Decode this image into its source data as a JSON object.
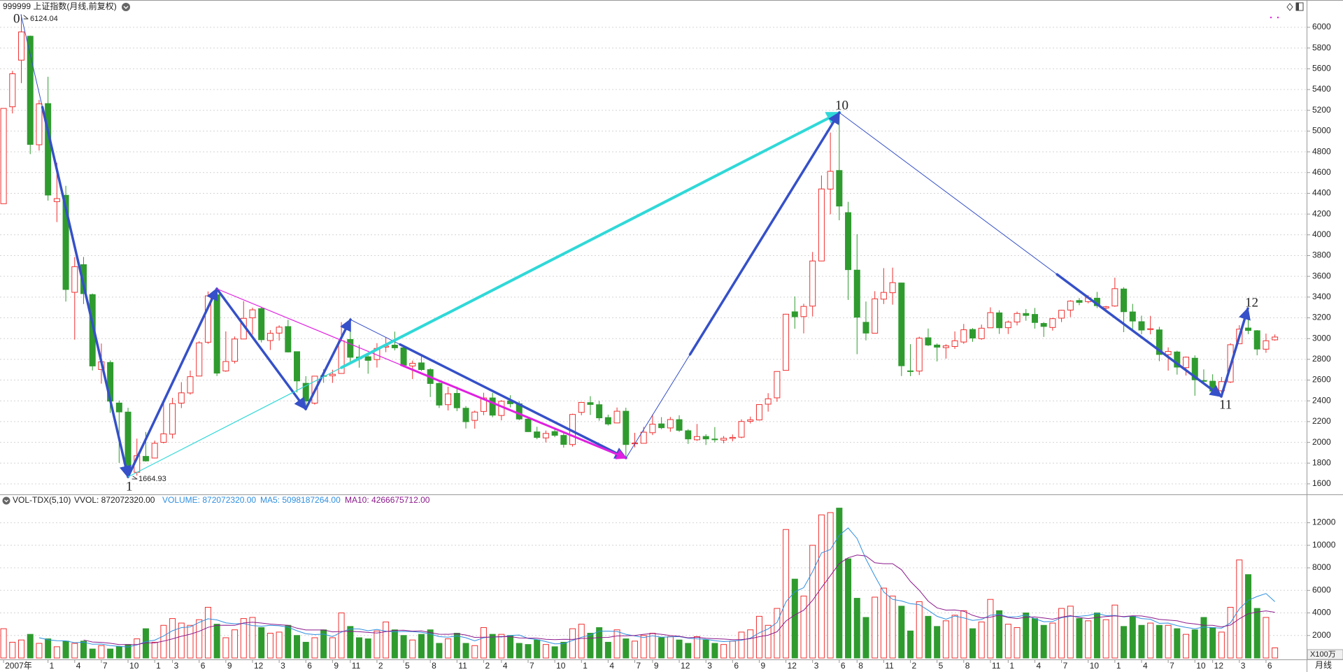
{
  "chart_data": {
    "type": "candlestick",
    "title": "999999 上证指数(月线,前复权)",
    "period": "月线",
    "up_color": "#f03030",
    "down_color": "#2f9b2f",
    "grid": true,
    "ylim": [
      1512,
      6263
    ],
    "yticks": [
      1600,
      1800,
      2000,
      2200,
      2400,
      2600,
      2800,
      3000,
      3200,
      3400,
      3600,
      3800,
      4000,
      4200,
      4400,
      4600,
      4800,
      5000,
      5200,
      5400,
      5600,
      5800,
      6000
    ],
    "wave_labels": [
      "0",
      "1",
      "10",
      "11",
      "12"
    ],
    "extreme_labels": [
      "6124.04",
      "1664.93"
    ],
    "categories": [
      "2007年",
      null,
      null,
      null,
      null,
      "1",
      null,
      null,
      "4",
      null,
      null,
      "7",
      null,
      null,
      "10",
      null,
      null,
      "1",
      null,
      "3",
      null,
      null,
      "6",
      null,
      null,
      "9",
      null,
      null,
      "12",
      null,
      null,
      "3",
      null,
      null,
      "6",
      null,
      null,
      "9",
      null,
      "11",
      null,
      null,
      "2",
      null,
      null,
      "5",
      null,
      null,
      "8",
      null,
      null,
      "11",
      null,
      null,
      "2",
      null,
      "4",
      null,
      null,
      "7",
      null,
      null,
      "10",
      null,
      null,
      "1",
      null,
      null,
      "4",
      null,
      null,
      "7",
      null,
      "9",
      null,
      null,
      "12",
      null,
      null,
      "3",
      null,
      null,
      "6",
      null,
      null,
      "9",
      null,
      null,
      "12",
      null,
      null,
      "3",
      null,
      null,
      "6",
      null,
      "8",
      null,
      null,
      "11",
      null,
      null,
      "2",
      null,
      null,
      "5",
      null,
      null,
      "8",
      null,
      null,
      "11",
      null,
      "1",
      null,
      null,
      "4",
      null,
      null,
      "7",
      null,
      null,
      "10",
      null,
      null,
      "1",
      null,
      null,
      "4",
      null,
      null,
      "7",
      null,
      null,
      "10",
      null,
      "12",
      null,
      null,
      "3",
      null,
      null,
      "6",
      null
    ],
    "candles": [
      [
        4300,
        5219,
        4300,
        5218
      ],
      [
        5234,
        5580,
        5170,
        5552
      ],
      [
        5683,
        6124,
        5462,
        5955
      ],
      [
        5914,
        5920,
        4778,
        4871
      ],
      [
        4868,
        5300,
        4812,
        5262
      ],
      [
        5265,
        5523,
        4330,
        4383
      ],
      [
        4320,
        4695,
        4123,
        4349
      ],
      [
        4381,
        4472,
        3357,
        3473
      ],
      [
        3446,
        3786,
        2990,
        3693
      ],
      [
        3713,
        3787,
        3333,
        3433
      ],
      [
        3424,
        3434,
        2693,
        2736
      ],
      [
        2702,
        2952,
        2566,
        2776
      ],
      [
        2770,
        2790,
        2284,
        2397
      ],
      [
        2379,
        2403,
        1802,
        2293
      ],
      [
        2292,
        2333,
        1665,
        1729
      ],
      [
        1712,
        2036,
        1679,
        1871
      ],
      [
        1865,
        2100,
        1814,
        1821
      ],
      [
        1849,
        2017,
        1845,
        1991
      ],
      [
        2000,
        2402,
        1990,
        2082
      ],
      [
        2079,
        2429,
        2037,
        2373
      ],
      [
        2378,
        2580,
        2330,
        2477
      ],
      [
        2476,
        2692,
        2460,
        2633
      ],
      [
        2639,
        2975,
        2639,
        2959
      ],
      [
        2965,
        3454,
        2949,
        3412
      ],
      [
        3422,
        3478,
        2639,
        2667
      ],
      [
        2688,
        3069,
        2680,
        2779
      ],
      [
        2781,
        3020,
        2760,
        2996
      ],
      [
        2996,
        3361,
        2996,
        3195
      ],
      [
        3200,
        3298,
        3039,
        3277
      ],
      [
        3289,
        3306,
        2963,
        2989
      ],
      [
        2981,
        3082,
        2890,
        3051
      ],
      [
        3053,
        3128,
        2981,
        3110
      ],
      [
        3116,
        3181,
        2866,
        2871
      ],
      [
        2874,
        2876,
        2481,
        2592
      ],
      [
        2569,
        2638,
        2319,
        2398
      ],
      [
        2378,
        2638,
        2363,
        2638
      ],
      [
        2643,
        2704,
        2574,
        2638
      ],
      [
        2642,
        2700,
        2573,
        2656
      ],
      [
        2664,
        3159,
        2664,
        2979
      ],
      [
        2992,
        3186,
        2757,
        2820
      ],
      [
        2822,
        2940,
        2720,
        2808
      ],
      [
        2825,
        2840,
        2661,
        2790
      ],
      [
        2798,
        2956,
        2721,
        2905
      ],
      [
        2918,
        3012,
        2869,
        2928
      ],
      [
        2937,
        3067,
        2886,
        2911
      ],
      [
        2911,
        2920,
        2724,
        2743
      ],
      [
        2736,
        2788,
        2610,
        2762
      ],
      [
        2766,
        2827,
        2687,
        2701
      ],
      [
        2701,
        2714,
        2437,
        2567
      ],
      [
        2568,
        2578,
        2331,
        2359
      ],
      [
        2363,
        2536,
        2307,
        2468
      ],
      [
        2472,
        2537,
        2301,
        2333
      ],
      [
        2329,
        2350,
        2134,
        2199
      ],
      [
        2212,
        2306,
        2132,
        2292
      ],
      [
        2298,
        2478,
        2262,
        2428
      ],
      [
        2428,
        2477,
        2242,
        2262
      ],
      [
        2259,
        2407,
        2212,
        2396
      ],
      [
        2399,
        2454,
        2337,
        2372
      ],
      [
        2372,
        2396,
        2214,
        2225
      ],
      [
        2224,
        2234,
        2100,
        2103
      ],
      [
        2101,
        2150,
        2030,
        2047
      ],
      [
        2043,
        2114,
        1999,
        2086
      ],
      [
        2104,
        2131,
        2050,
        2068
      ],
      [
        2067,
        2090,
        1949,
        1980
      ],
      [
        1979,
        2276,
        1959,
        2269
      ],
      [
        2289,
        2389,
        2261,
        2385
      ],
      [
        2383,
        2445,
        2264,
        2365
      ],
      [
        2363,
        2400,
        2209,
        2236
      ],
      [
        2239,
        2267,
        2162,
        2177
      ],
      [
        2187,
        2336,
        2184,
        2300
      ],
      [
        2300,
        2334,
        1849,
        1979
      ],
      [
        1986,
        2092,
        1951,
        1993
      ],
      [
        1991,
        2149,
        1990,
        2098
      ],
      [
        2093,
        2270,
        2070,
        2175
      ],
      [
        2178,
        2243,
        2127,
        2141
      ],
      [
        2139,
        2245,
        2102,
        2220
      ],
      [
        2219,
        2261,
        2101,
        2116
      ],
      [
        2112,
        2127,
        1985,
        2033
      ],
      [
        2025,
        2177,
        2014,
        2056
      ],
      [
        2057,
        2078,
        1975,
        2033
      ],
      [
        2032,
        2147,
        1999,
        2026
      ],
      [
        2022,
        2061,
        1991,
        2039
      ],
      [
        2038,
        2076,
        2010,
        2048
      ],
      [
        2050,
        2222,
        2040,
        2201
      ],
      [
        2203,
        2248,
        2182,
        2217
      ],
      [
        2216,
        2366,
        2211,
        2364
      ],
      [
        2368,
        2474,
        2296,
        2420
      ],
      [
        2429,
        2685,
        2391,
        2683
      ],
      [
        2694,
        3239,
        2693,
        3235
      ],
      [
        3258,
        3406,
        3095,
        3210
      ],
      [
        3212,
        3336,
        3050,
        3310
      ],
      [
        3313,
        3835,
        3213,
        3748
      ],
      [
        3748,
        4572,
        3745,
        4442
      ],
      [
        4441,
        4986,
        4198,
        4612
      ],
      [
        4620,
        5178,
        4140,
        4277
      ],
      [
        4214,
        4318,
        3373,
        3664
      ],
      [
        3660,
        4006,
        2850,
        3206
      ],
      [
        3157,
        3357,
        2983,
        3053
      ],
      [
        3052,
        3457,
        3052,
        3383
      ],
      [
        3380,
        3679,
        3333,
        3445
      ],
      [
        3442,
        3684,
        3327,
        3539
      ],
      [
        3536,
        3539,
        2639,
        2738
      ],
      [
        2689,
        2946,
        2638,
        2688
      ],
      [
        2687,
        3018,
        2649,
        3004
      ],
      [
        3008,
        3097,
        2928,
        2938
      ],
      [
        2938,
        2953,
        2780,
        2917
      ],
      [
        2913,
        2946,
        2807,
        2930
      ],
      [
        2924,
        3069,
        2900,
        2979
      ],
      [
        2967,
        3141,
        2950,
        3085
      ],
      [
        3088,
        3101,
        2969,
        3005
      ],
      [
        2999,
        3135,
        2989,
        3100
      ],
      [
        3104,
        3301,
        3102,
        3250
      ],
      [
        3248,
        3273,
        3045,
        3104
      ],
      [
        3105,
        3174,
        3044,
        3159
      ],
      [
        3160,
        3260,
        3127,
        3242
      ],
      [
        3242,
        3285,
        3172,
        3223
      ],
      [
        3233,
        3295,
        3096,
        3155
      ],
      [
        3146,
        3159,
        3016,
        3117
      ],
      [
        3107,
        3200,
        3077,
        3192
      ],
      [
        3197,
        3277,
        3159,
        3273
      ],
      [
        3275,
        3370,
        3207,
        3361
      ],
      [
        3367,
        3391,
        3322,
        3349
      ],
      [
        3356,
        3418,
        3340,
        3393
      ],
      [
        3389,
        3450,
        3294,
        3317
      ],
      [
        3295,
        3315,
        3254,
        3307
      ],
      [
        3314,
        3587,
        3307,
        3481
      ],
      [
        3478,
        3495,
        3062,
        3259
      ],
      [
        3257,
        3335,
        3091,
        3169
      ],
      [
        3163,
        3221,
        3041,
        3082
      ],
      [
        3087,
        3219,
        3041,
        3095
      ],
      [
        3084,
        3113,
        2782,
        2847
      ],
      [
        2845,
        2915,
        2691,
        2876
      ],
      [
        2871,
        2883,
        2653,
        2725
      ],
      [
        2720,
        2827,
        2644,
        2821
      ],
      [
        2811,
        2838,
        2449,
        2603
      ],
      [
        2596,
        2703,
        2565,
        2588
      ],
      [
        2589,
        2656,
        2463,
        2494
      ],
      [
        2497,
        2630,
        2440,
        2585
      ],
      [
        2582,
        2955,
        2572,
        2941
      ],
      [
        2950,
        3129,
        2950,
        3091
      ],
      [
        3102,
        3288,
        3043,
        3078
      ],
      [
        3076,
        3082,
        2839,
        2899
      ],
      [
        2898,
        3048,
        2863,
        2979
      ],
      [
        2988,
        3040,
        2980,
        3015
      ]
    ],
    "volume": {
      "header": "VOL-TDX(5,10)",
      "vvol": "VVOL: 872072320.00",
      "volume_label": "VOLUME: 872072320.00",
      "ma5_label": "MA5: 5098187264.00",
      "ma10_label": "MA10: 4266675712.00",
      "unit": "X100万",
      "ma5_color": "#2f8fe0",
      "ma10_color": "#8b1a8b",
      "ylim": [
        0,
        13400
      ],
      "yticks": [
        2000,
        4000,
        6000,
        8000,
        10000,
        12000
      ],
      "values": [
        2600,
        1400,
        1600,
        2100,
        1300,
        1700,
        1000,
        1500,
        1300,
        1500,
        800,
        1100,
        800,
        1000,
        1200,
        1700,
        2600,
        1400,
        2900,
        3500,
        3100,
        2900,
        3400,
        4500,
        3000,
        1800,
        2500,
        3500,
        3600,
        2700,
        2200,
        2300,
        2900,
        2000,
        1400,
        1800,
        2500,
        1800,
        4000,
        2800,
        1800,
        1700,
        2400,
        3200,
        2500,
        2000,
        1600,
        2100,
        2500,
        1300,
        1700,
        2200,
        1300,
        1100,
        2700,
        2100,
        2100,
        2000,
        1300,
        1200,
        1600,
        1200,
        1000,
        1400,
        2600,
        3000,
        2200,
        2700,
        1400,
        2500,
        1700,
        1500,
        2000,
        2200,
        1800,
        1900,
        1600,
        1300,
        1900,
        1600,
        1300,
        1200,
        1500,
        2300,
        2500,
        3700,
        2900,
        4400,
        11400,
        7000,
        5500,
        10000,
        12700,
        12900,
        13300,
        8800,
        5300,
        3600,
        5400,
        6200,
        5500,
        4600,
        2400,
        5000,
        3700,
        2800,
        3300,
        3800,
        4200,
        2600,
        3200,
        5200,
        4200,
        3000,
        2700,
        4000,
        3500,
        2900,
        3100,
        4400,
        4600,
        3500,
        3300,
        4000,
        3400,
        4700,
        2800,
        3700,
        2900,
        3100,
        2900,
        2900,
        2600,
        2100,
        2500,
        3600,
        2700,
        2300,
        4500,
        8700,
        7400,
        4400,
        3600,
        900
      ]
    }
  }
}
